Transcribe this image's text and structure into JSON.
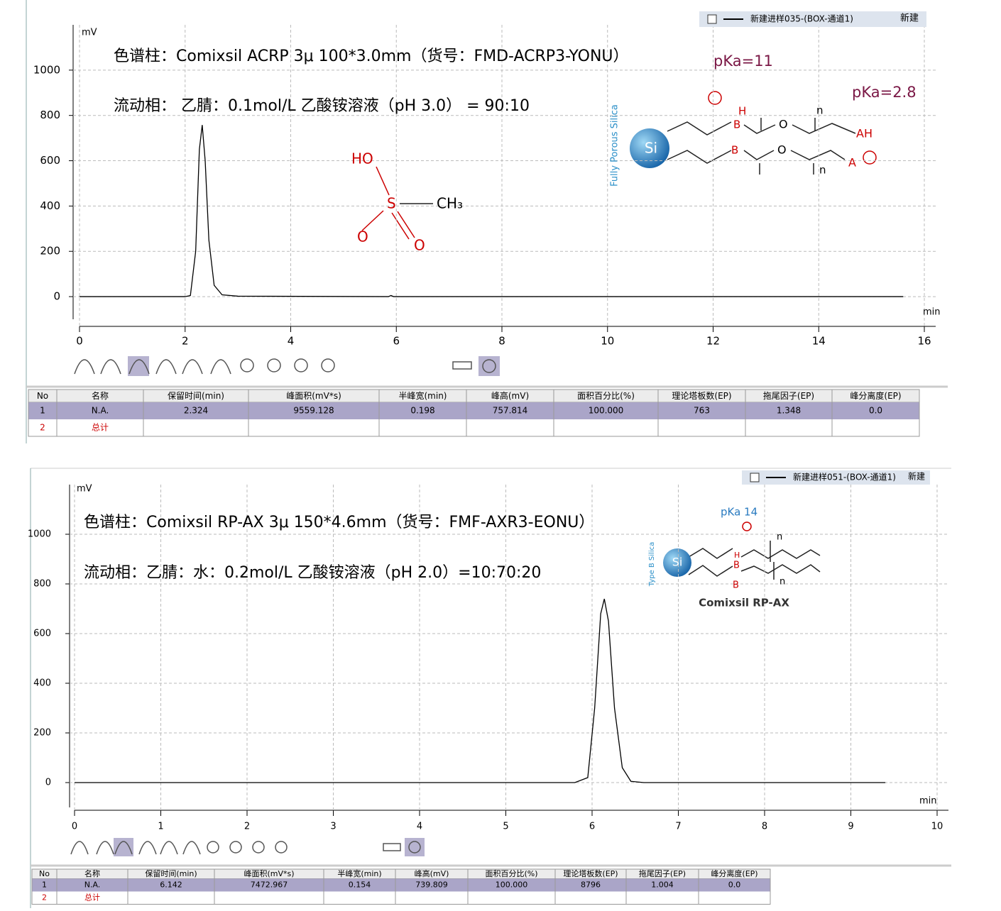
{
  "chart_data": [
    {
      "type": "line",
      "x_label": "min",
      "y_label": "mV",
      "xlim": [
        0,
        16
      ],
      "ylim": [
        -100,
        1200
      ],
      "xticks": [
        0,
        2,
        4,
        6,
        8,
        10,
        12,
        14,
        16
      ],
      "yticks": [
        0,
        200,
        400,
        600,
        800,
        1000
      ],
      "grid": true,
      "x": [
        0,
        2.0,
        2.1,
        2.2,
        2.27,
        2.324,
        2.38,
        2.45,
        2.55,
        2.7,
        3.0,
        5.85,
        5.9,
        5.95,
        15.6
      ],
      "series": [
        {
          "name": "新建进样035-(BOX-通道1)",
          "color": "#000000",
          "values": [
            0,
            0,
            5,
            200,
            650,
            757.8,
            600,
            250,
            50,
            8,
            2,
            0,
            5,
            0,
            0
          ]
        }
      ],
      "annotations": [
        "色谱柱：Comixsil ACRP 3μ 100*3.0mm（货号：FMD-ACRP3-YONU）",
        "流动相：  乙腈：0.1mol/L  乙酸铵溶液（pH 3.0）  = 90:10",
        "HO",
        "S",
        "CH₃",
        "O",
        "O",
        "pKa=11",
        "pKa=2.8",
        "Fully Porous Silica",
        "Si",
        "H",
        "B",
        "B",
        "O",
        "O",
        "n",
        "n",
        "AH",
        "A",
        "新建"
      ]
    },
    {
      "type": "line",
      "x_label": "min",
      "y_label": "mV",
      "xlim": [
        0,
        10
      ],
      "ylim": [
        -100,
        1200
      ],
      "xticks": [
        0,
        1,
        2,
        3,
        4,
        5,
        6,
        7,
        8,
        9,
        10
      ],
      "yticks": [
        0,
        200,
        400,
        600,
        800,
        1000
      ],
      "grid": true,
      "x": [
        0,
        5.8,
        5.95,
        6.03,
        6.1,
        6.142,
        6.19,
        6.26,
        6.35,
        6.45,
        6.6,
        9.4
      ],
      "series": [
        {
          "name": "新建进样051-(BOX-通道1)",
          "color": "#000000",
          "values": [
            0,
            0,
            20,
            300,
            680,
            739.8,
            650,
            300,
            60,
            5,
            0,
            0
          ]
        }
      ],
      "annotations": [
        "色谱柱：Comixsil RP-AX 3μ  150*4.6mm（货号：FMF-AXR3-EONU）",
        "流动相：乙腈：水：0.2mol/L  乙酸铵溶液（pH 2.0）=10:70:20",
        "pKa 14",
        "Si",
        "H",
        "B",
        "B",
        "n",
        "n",
        "Type B Silica",
        "Comixsil RP-AX",
        "新建"
      ]
    }
  ],
  "tables": [
    {
      "columns": [
        "No",
        "名称",
        "保留时间(min)",
        "峰面积(mV*s)",
        "半峰宽(min)",
        "峰高(mV)",
        "面积百分比(%)",
        "理论塔板数(EP)",
        "拖尾因子(EP)",
        "峰分离度(EP)"
      ],
      "rows": [
        [
          "1",
          "N.A.",
          "2.324",
          "9559.128",
          "0.198",
          "757.814",
          "100.000",
          "763",
          "1.348",
          "0.0"
        ],
        [
          "2",
          "总计"
        ]
      ]
    },
    {
      "columns": [
        "No",
        "名称",
        "保留时间(min)",
        "峰面积(mV*s)",
        "半峰宽(min)",
        "峰高(mV)",
        "面积百分比(%)",
        "理论塔板数(EP)",
        "拖尾因子(EP)",
        "峰分离度(EP)"
      ],
      "rows": [
        [
          "1",
          "N.A.",
          "6.142",
          "7472.967",
          "0.154",
          "739.809",
          "100.000",
          "8796",
          "1.004",
          "0.0"
        ],
        [
          "2",
          "总计"
        ]
      ]
    }
  ]
}
